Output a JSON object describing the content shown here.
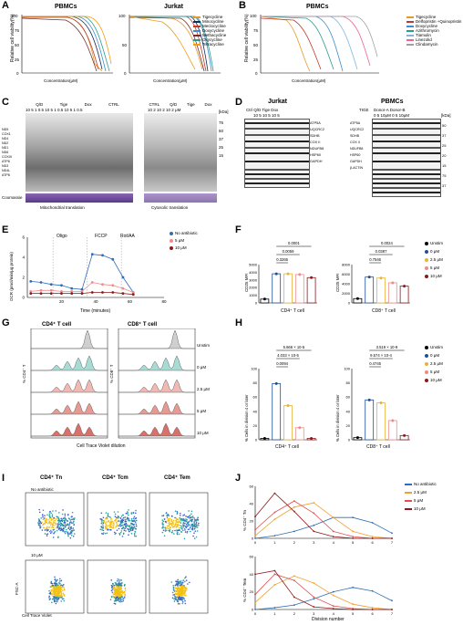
{
  "panels": {
    "A": {
      "label": "A",
      "left": {
        "title": "PBMCs"
      },
      "right": {
        "title": "Jurkat"
      },
      "ylabel": "Relative cell viability(%)",
      "xlabel": "Concentration(μM)",
      "legend": [
        "Tigecycline",
        "Minocycline",
        "Meclocycline",
        "Doxycycline",
        "Methacycline",
        "Oxycycline",
        "Tetracycline"
      ],
      "colors": [
        "#e39a2c",
        "#1b2f5d",
        "#c0392b",
        "#3b8fd1",
        "#7b2a2a",
        "#2a9d8f",
        "#f39c12"
      ]
    },
    "B": {
      "label": "B",
      "title": "PBMCs",
      "ylabel": "Relative cell viability(%)",
      "xlabel": "Concentration(μM)",
      "legend": [
        "Tigecycline",
        "Delfopristin +Quinopristin",
        "Doxycycline",
        "Azithromycin",
        "Tiamulin",
        "Linezolid",
        "Clindamycin"
      ],
      "colors": [
        "#e39a2c",
        "#c0392b",
        "#3b8fd1",
        "#2a9d8f",
        "#7fb6e0",
        "#f06292",
        "#9aa0a6"
      ]
    },
    "C": {
      "label": "C",
      "lanes_left": [
        "Q/D",
        "Tige",
        "Dox",
        "CTRL"
      ],
      "conc_left": "10 5 1 0.5 10 5 1 0.5 10 5 1 0.5",
      "lanes_right": [
        "CTRL",
        "Q/D",
        "Tige",
        "Dox"
      ],
      "conc_right": "10 2 10 2 10 2 μM",
      "kda": "[kDa]",
      "markers": [
        "75",
        "50",
        "37",
        "25",
        "15"
      ],
      "proteins": [
        "ND5",
        "COX1",
        "ND4",
        "ND2",
        "ND1",
        "ND6",
        "COXIII",
        "ATP6",
        "ND3",
        "ND4L",
        "ATP8"
      ],
      "coomassie": "Coomassie",
      "caption_left": "Mitochondrial translation",
      "caption_right": "Cytosolic translation"
    },
    "D": {
      "label": "D",
      "title_left": "Jurkat",
      "title_right": "PBMCs",
      "lanes_left": "Ctrl  Q/D  Tige  Dox",
      "conc_left": "10 5 10 5 10 5",
      "proteins_left": [
        "ATP5A",
        "UQCRC2",
        "SDHB",
        "COX II",
        "NDUFB8",
        "HSP60",
        "GAPDH"
      ],
      "right_header": "Donor-A   Donor-B",
      "tige_label": "TIGE",
      "conc_right": "0  5  10μM  0  5  10μM",
      "proteins_right": [
        "ATP5A",
        "UQCRC2",
        "SDHB",
        "COX II",
        "NDUFB8",
        "HSP60",
        "GAPDH",
        "β-ACTIN"
      ],
      "kda": "[kDa]",
      "markers": [
        "50",
        "37",
        "25",
        "20",
        "15",
        "75",
        "37"
      ]
    },
    "E": {
      "label": "E",
      "ylabel": "OCR (pmol/min/μg protein)",
      "xlabel": "Time (minutes)",
      "annotations": [
        "Oligo",
        "FCCP",
        "Rot/AA"
      ],
      "legend": [
        "No antibiotic",
        "5 μM",
        "10 μM"
      ],
      "colors": [
        "#2f6db5",
        "#f28b8b",
        "#8b1a1a"
      ]
    },
    "F": {
      "label": "F",
      "left": {
        "ylabel": "CD25 MFI",
        "xlabel": "CD4⁺ T cell",
        "pvalues": [
          "0.0001",
          "0.0059",
          "0.3265"
        ]
      },
      "right": {
        "ylabel": "CD25 MFI",
        "xlabel": "CD8⁺ T cell",
        "pvalues": [
          "0.0024",
          "0.0387",
          "0.7546"
        ]
      },
      "legend": [
        "Unstim",
        "0 μM",
        "2.5 μM",
        "5 μM",
        "10 μM"
      ],
      "colors": [
        "#000000",
        "#1f4e9c",
        "#e8b339",
        "#f08a8a",
        "#8b1a1a"
      ]
    },
    "G": {
      "label": "G",
      "titles": [
        "CD4⁺ T cell",
        "CD8⁺ T cell"
      ],
      "ylabels": [
        "% CD4⁺ T",
        "% CD8⁺ T"
      ],
      "rows": [
        "Unstim",
        "0 μM",
        "2.5 μM",
        "5 μM",
        "10 μM"
      ],
      "xlabel": "Cell Trace Violet dilution"
    },
    "H": {
      "label": "H",
      "left": {
        "ylabel": "% Cells in division 4 or later",
        "xlabel": "CD4⁺ T cell",
        "pvalues": [
          "5.666 × 10^-5",
          "4.033 × 10^-5",
          "0.0094"
        ]
      },
      "right": {
        "ylabel": "% Cells in division 4 or later",
        "xlabel": "CD8⁺ T cell",
        "pvalues": [
          "3.519 × 10^-9",
          "9.574 × 10^-4",
          "0.4745"
        ]
      },
      "legend": [
        "Unstim",
        "0 μM",
        "2.5 μM",
        "5 μM",
        "10 μM"
      ],
      "colors": [
        "#000000",
        "#1f4e9c",
        "#e8b339",
        "#f08a8a",
        "#8b1a1a"
      ]
    },
    "I": {
      "label": "I",
      "titles": [
        "CD4⁺ Tn",
        "CD4⁺ Tcm",
        "CD4⁺ Tem"
      ],
      "rows": [
        "No antibiotic",
        "10 μM"
      ],
      "ylabel": "FSC-A",
      "xlabel": "Cell Trace Violet"
    },
    "J": {
      "label": "J",
      "ylabel_top": "% CD4⁺ Tn",
      "ylabel_bottom": "% CD4⁺ Tem",
      "xlabel": "Division number",
      "legend": [
        "No antibiotic",
        "2.5 μM",
        "5 μM",
        "10 μM"
      ],
      "colors": [
        "#2f6db5",
        "#f0a030",
        "#e05050",
        "#8b1a1a"
      ]
    }
  },
  "chart_data": [
    {
      "type": "line",
      "panel": "E",
      "title": "",
      "xlabel": "Time (minutes)",
      "ylabel": "OCR (pmol/min/μg protein)",
      "xlim": [
        0,
        80
      ],
      "ylim": [
        0,
        6
      ],
      "x": [
        2,
        8,
        14,
        20,
        26,
        32,
        38,
        44,
        50,
        56,
        62
      ],
      "series": [
        {
          "name": "No antibiotic",
          "values": [
            1.6,
            1.5,
            1.3,
            1.2,
            0.9,
            0.8,
            4.3,
            4.2,
            3.8,
            2.0,
            0.5
          ]
        },
        {
          "name": "5 μM",
          "values": [
            0.6,
            0.7,
            0.7,
            0.6,
            0.6,
            0.6,
            1.5,
            1.3,
            1.2,
            0.9,
            0.5
          ]
        },
        {
          "name": "10 μM",
          "values": [
            0.4,
            0.4,
            0.4,
            0.4,
            0.4,
            0.4,
            0.5,
            0.5,
            0.5,
            0.4,
            0.3
          ]
        }
      ]
    },
    {
      "type": "bar",
      "panel": "F-left",
      "xlabel": "CD4⁺ T cell",
      "ylabel": "CD25 MFI",
      "ylim": [
        0,
        5000
      ],
      "categories": [
        "Unstim",
        "0 μM",
        "2.5 μM",
        "5 μM",
        "10 μM"
      ],
      "values": [
        500,
        3800,
        3800,
        3700,
        3300
      ]
    },
    {
      "type": "bar",
      "panel": "F-right",
      "xlabel": "CD8⁺ T cell",
      "ylabel": "CD25 MFI",
      "ylim": [
        0,
        8000
      ],
      "categories": [
        "Unstim",
        "0 μM",
        "2.5 μM",
        "5 μM",
        "10 μM"
      ],
      "values": [
        900,
        5400,
        5200,
        4200,
        3500
      ]
    },
    {
      "type": "bar",
      "panel": "H-left",
      "xlabel": "CD4⁺ T cell",
      "ylabel": "% Cells in division 4 or later",
      "ylim": [
        0,
        100
      ],
      "categories": [
        "Unstim",
        "0 μM",
        "2.5 μM",
        "5 μM",
        "10 μM"
      ],
      "values": [
        2,
        79,
        48,
        17,
        2
      ]
    },
    {
      "type": "bar",
      "panel": "H-right",
      "xlabel": "CD8⁺ T cell",
      "ylabel": "% Cells in division 4 or later",
      "ylim": [
        0,
        100
      ],
      "categories": [
        "Unstim",
        "0 μM",
        "2.5 μM",
        "5 μM",
        "10 μM"
      ],
      "values": [
        3,
        56,
        52,
        27,
        6
      ]
    },
    {
      "type": "line",
      "panel": "J-top",
      "xlabel": "Division number",
      "ylabel": "% CD4⁺ Tn",
      "xlim": [
        0,
        7
      ],
      "ylim": [
        0,
        60
      ],
      "x": [
        0,
        1,
        2,
        3,
        4,
        5,
        6,
        7
      ],
      "series": [
        {
          "name": "No antibiotic",
          "values": [
            0,
            3,
            8,
            15,
            24,
            24,
            18,
            6
          ]
        },
        {
          "name": "2.5 μM",
          "values": [
            3,
            22,
            36,
            41,
            24,
            8,
            2,
            0
          ]
        },
        {
          "name": "5 μM",
          "values": [
            10,
            30,
            43,
            29,
            8,
            2,
            0,
            0
          ]
        },
        {
          "name": "10 μM",
          "values": [
            25,
            52,
            31,
            8,
            2,
            0,
            0,
            0
          ]
        }
      ]
    },
    {
      "type": "line",
      "panel": "J-bottom",
      "xlabel": "Division number",
      "ylabel": "% CD4⁺ Tem",
      "xlim": [
        0,
        7
      ],
      "ylim": [
        0,
        60
      ],
      "x": [
        0,
        1,
        2,
        3,
        4,
        5,
        6,
        7
      ],
      "series": [
        {
          "name": "No antibiotic",
          "values": [
            0,
            2,
            5,
            12,
            20,
            25,
            21,
            10
          ]
        },
        {
          "name": "2.5 μM",
          "values": [
            8,
            28,
            38,
            30,
            16,
            6,
            2,
            0
          ]
        },
        {
          "name": "5 μM",
          "values": [
            17,
            40,
            33,
            14,
            4,
            1,
            0,
            0
          ]
        },
        {
          "name": "10 μM",
          "values": [
            40,
            44,
            14,
            3,
            1,
            0,
            0,
            0
          ]
        }
      ]
    }
  ]
}
